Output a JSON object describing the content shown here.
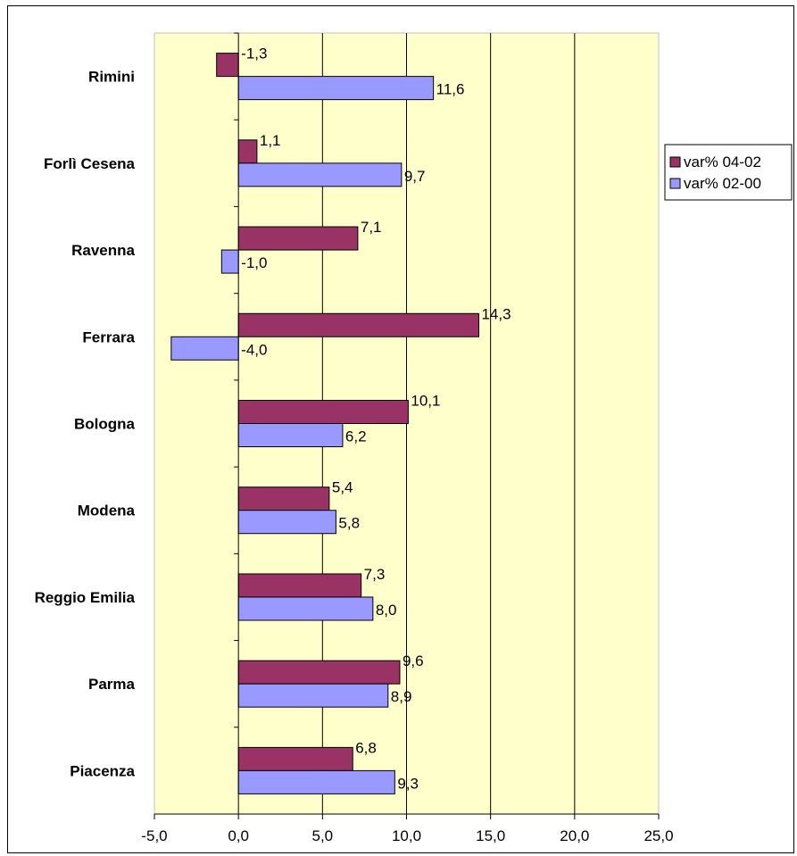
{
  "chart_data": {
    "type": "bar",
    "orientation": "horizontal",
    "categories": [
      "Piacenza",
      "Parma",
      "Reggio Emilia",
      "Modena",
      "Bologna",
      "Ferrara",
      "Ravenna",
      "Forlì Cesena",
      "Rimini"
    ],
    "series": [
      {
        "name": "var% 04-02",
        "color": "#993366",
        "values": [
          6.8,
          9.6,
          7.3,
          5.4,
          10.1,
          14.3,
          7.1,
          1.1,
          -1.3
        ]
      },
      {
        "name": "var% 02-00",
        "color": "#9999FF",
        "values": [
          9.3,
          8.9,
          8.0,
          5.8,
          6.2,
          -4.0,
          -1.0,
          9.7,
          11.6
        ]
      }
    ],
    "xlim": [
      -5,
      25
    ],
    "ticks": [
      -5,
      0,
      5,
      10,
      15,
      20,
      25
    ],
    "tick_labels": [
      "-5,0",
      "0,0",
      "5,0",
      "10,0",
      "15,0",
      "20,0",
      "25,0"
    ],
    "data_labels": [
      [
        "6,8",
        "9,6",
        "7,3",
        "5,4",
        "10,1",
        "14,3",
        "7,1",
        "1,1",
        "-1,3"
      ],
      [
        "9,3",
        "8,9",
        "8,0",
        "5,8",
        "6,2",
        "-4,0",
        "-1,0",
        "9,7",
        "11,6"
      ]
    ],
    "plot_background": "#FFFFCC",
    "grid": true,
    "legend_position": "right"
  }
}
